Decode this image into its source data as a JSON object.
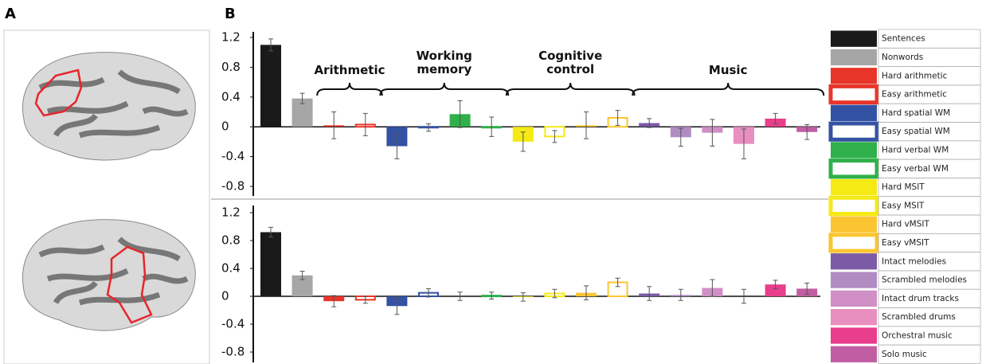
{
  "panel_labels": [
    "A",
    "B"
  ],
  "chart_data": [
    {
      "type": "bar",
      "categories": [
        "Sentences",
        "Nonwords",
        "Hard arithmetic",
        "Easy arithmetic",
        "Hard spatial WM",
        "Easy spatial WM",
        "Hard verbal WM",
        "Easy verbal WM",
        "Hard MSIT",
        "Easy MSIT",
        "Hard vMSIT",
        "Easy vMSIT",
        "Intact melodies",
        "Scrambled melodies",
        "Intact drum tracks",
        "Scrambled drums",
        "Orchestral music",
        "Solo music"
      ],
      "colors": [
        "#1a1a1a",
        "#a6a6a6",
        "#e8352a",
        "#e8352a",
        "#3352a3",
        "#3352a3",
        "#2fb04a",
        "#2fb04a",
        "#f5ea14",
        "#f5ea14",
        "#fbc531",
        "#fbc531",
        "#7b5aa6",
        "#b08cc2",
        "#d08fc5",
        "#e88fc0",
        "#e83e8c",
        "#c15ea3"
      ],
      "filled": [
        true,
        true,
        true,
        false,
        true,
        false,
        true,
        false,
        true,
        false,
        true,
        false,
        true,
        true,
        true,
        true,
        true,
        true
      ],
      "values": [
        1.1,
        0.38,
        0.02,
        0.03,
        -0.26,
        -0.01,
        0.17,
        0.0,
        -0.2,
        -0.13,
        0.02,
        0.12,
        0.05,
        -0.14,
        -0.08,
        -0.23,
        0.11,
        -0.07
      ],
      "errors": [
        0.08,
        0.07,
        0.18,
        0.15,
        0.17,
        0.05,
        0.18,
        0.13,
        0.13,
        0.08,
        0.18,
        0.1,
        0.06,
        0.12,
        0.18,
        0.2,
        0.07,
        0.1
      ],
      "groups": [
        "Arithmetic",
        "Working memory",
        "Cognitive control",
        "Music"
      ],
      "ylim": [
        -0.8,
        1.2
      ],
      "yticks": [
        1.2,
        0.8,
        0.4,
        0,
        -0.4,
        -0.8
      ]
    },
    {
      "type": "bar",
      "values": [
        0.92,
        0.3,
        -0.07,
        -0.05,
        -0.14,
        0.05,
        0.0,
        0.01,
        -0.01,
        0.04,
        0.05,
        0.2,
        0.04,
        0.02,
        0.12,
        0.0,
        0.17,
        0.11
      ],
      "errors": [
        0.07,
        0.06,
        0.08,
        0.05,
        0.12,
        0.06,
        0.06,
        0.05,
        0.06,
        0.06,
        0.1,
        0.06,
        0.1,
        0.08,
        0.12,
        0.1,
        0.06,
        0.08
      ],
      "ylim": [
        -0.8,
        1.2
      ],
      "yticks": [
        1.2,
        0.8,
        0.4,
        0,
        -0.4,
        -0.8
      ]
    }
  ]
}
